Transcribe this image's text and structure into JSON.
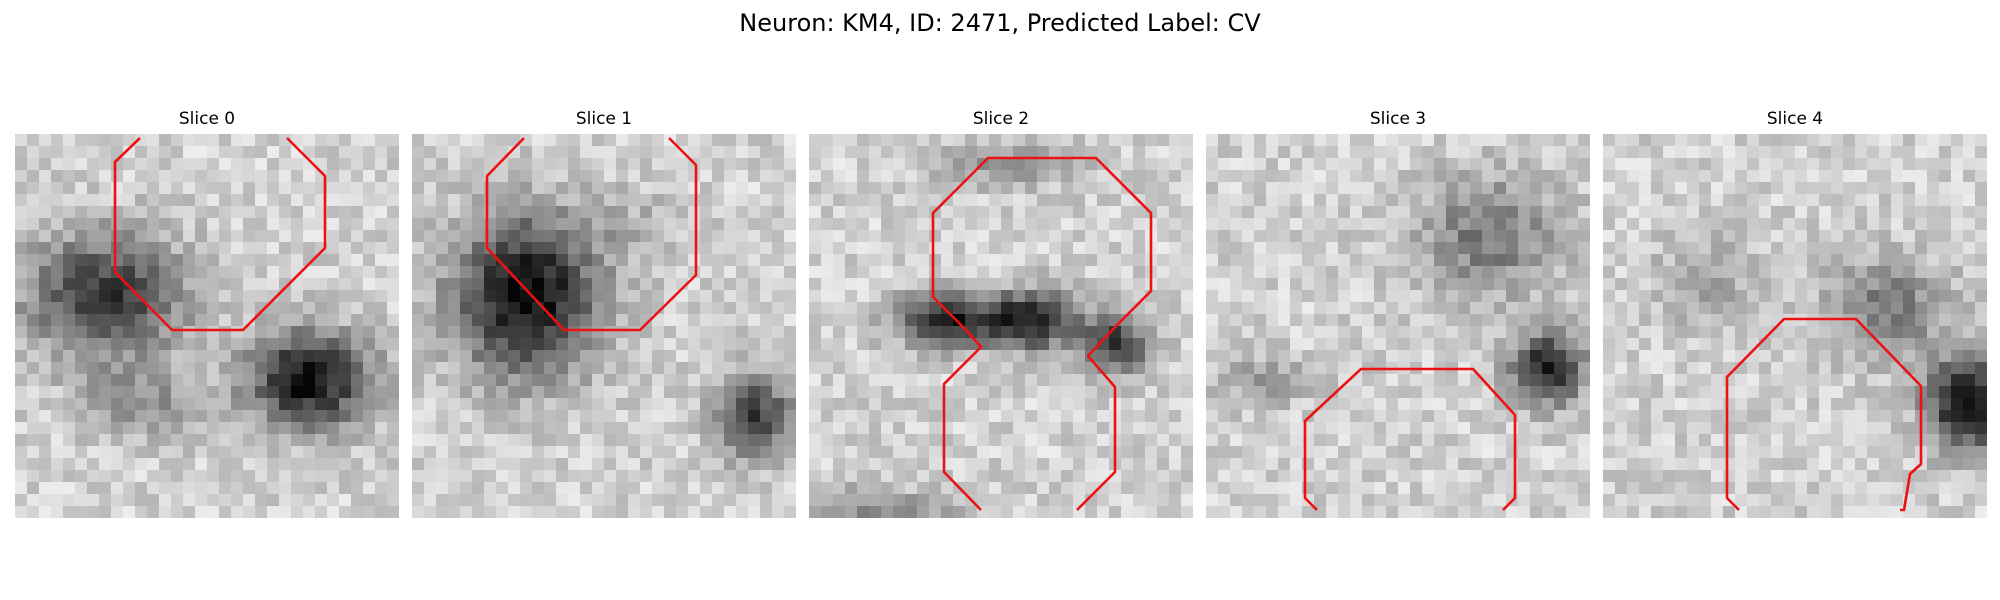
{
  "figure": {
    "title": "Neuron: KM4, ID: 2471, Predicted Label: CV",
    "contour_color": "#ee1111"
  },
  "panels": [
    {
      "title": "Slice 0"
    },
    {
      "title": "Slice 1"
    },
    {
      "title": "Slice 2"
    },
    {
      "title": "Slice 3"
    },
    {
      "title": "Slice 4"
    }
  ]
}
